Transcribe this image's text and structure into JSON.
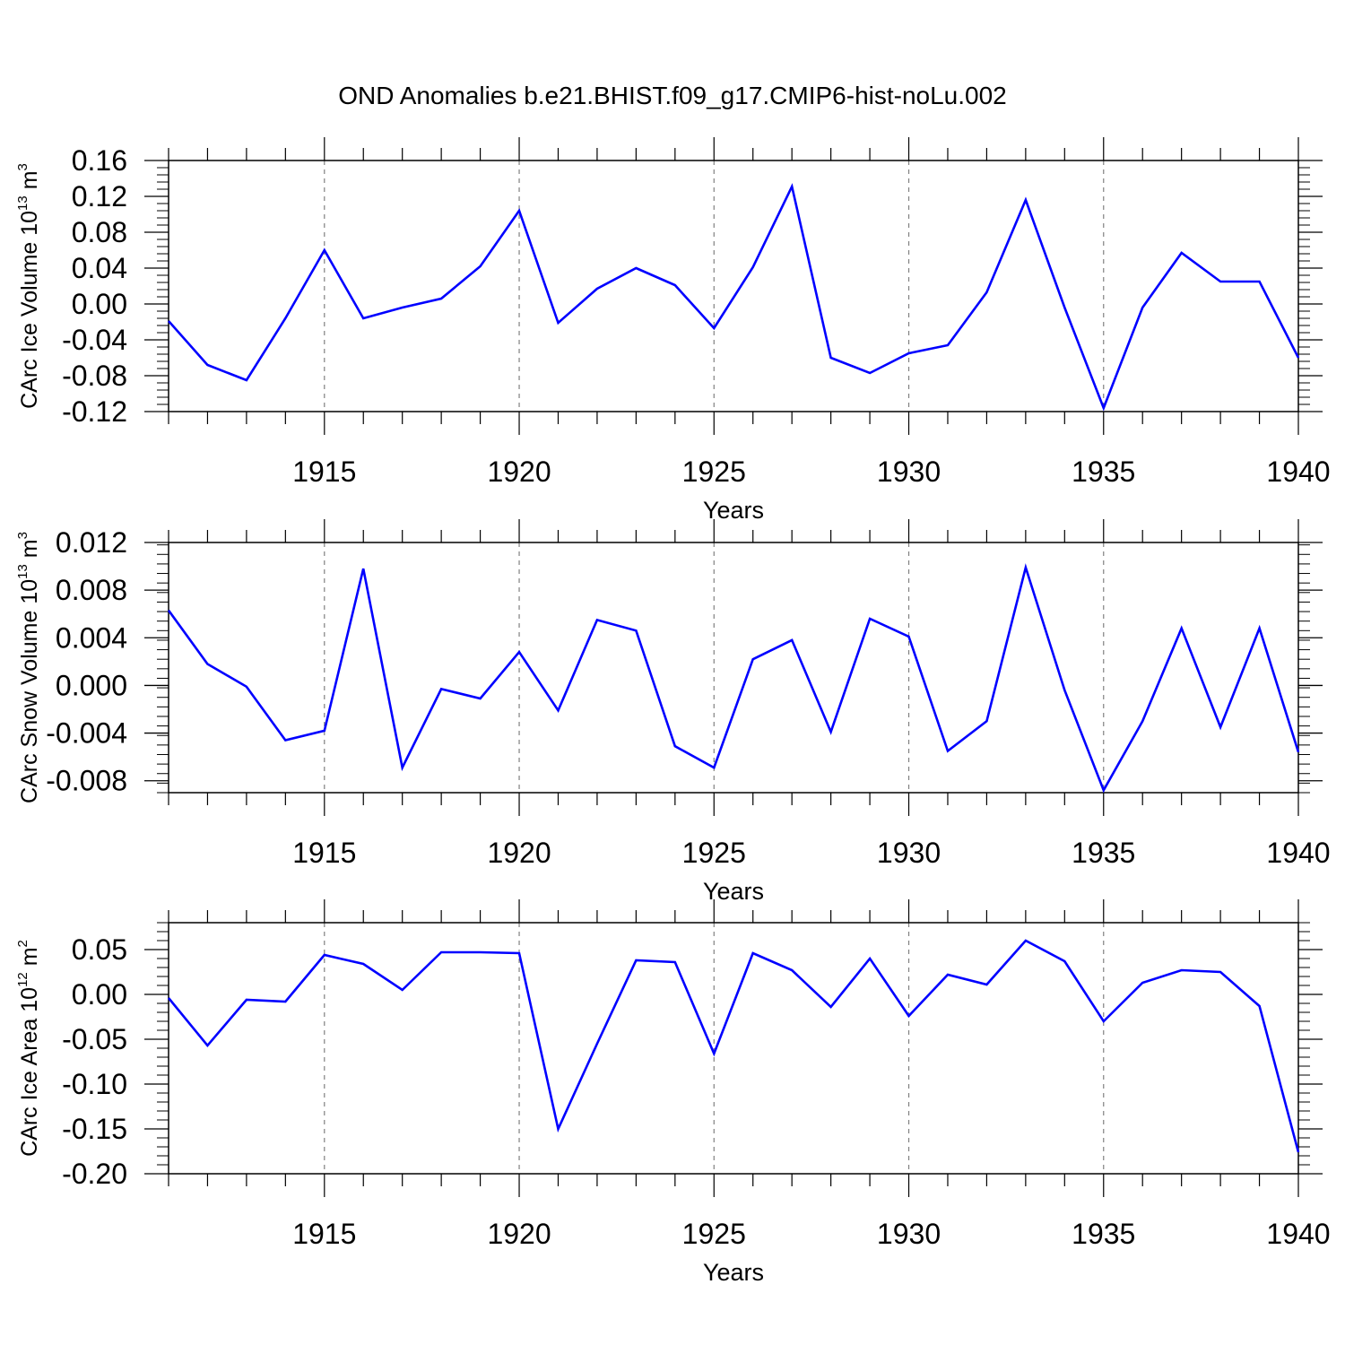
{
  "title": "OND Anomalies b.e21.BHIST.f09_g17.CMIP6-hist-noLu.002",
  "colors": {
    "line": "#0000ff",
    "axis": "#000000",
    "grid": "#808080",
    "background": "#ffffff"
  },
  "chart_data": [
    {
      "type": "line",
      "title": "OND Anomalies b.e21.BHIST.f09_g17.CMIP6-hist-noLu.002",
      "xlabel": "Years",
      "ylabel": {
        "text": "CArc Ice Volume 10",
        "exp": "13",
        "unit": " m",
        "unit_exp": "3"
      },
      "xlim": [
        1911,
        1940
      ],
      "ylim": [
        -0.12,
        0.16
      ],
      "x_ticks": [
        "1915",
        "1920",
        "1925",
        "1930",
        "1935",
        "1940"
      ],
      "y_ticks": [
        "0.16",
        "0.12",
        "0.08",
        "0.04",
        "0.00",
        "-0.04",
        "-0.08",
        "-0.12"
      ],
      "y_major_step": 0.04,
      "y_minor_step": 0.008,
      "grid": "vertical dashed at 5-year ticks",
      "x": [
        1911,
        1912,
        1913,
        1914,
        1915,
        1916,
        1917,
        1918,
        1919,
        1920,
        1921,
        1922,
        1923,
        1924,
        1925,
        1926,
        1927,
        1928,
        1929,
        1930,
        1931,
        1932,
        1933,
        1934,
        1935,
        1936,
        1937,
        1938,
        1939,
        1940
      ],
      "values": [
        -0.019,
        -0.068,
        -0.085,
        -0.016,
        0.06,
        -0.016,
        -0.004,
        0.006,
        0.042,
        0.104,
        -0.021,
        0.017,
        0.04,
        0.021,
        -0.027,
        0.041,
        0.131,
        -0.06,
        -0.077,
        -0.055,
        -0.046,
        0.013,
        0.116,
        -0.004,
        -0.116,
        -0.004,
        0.057,
        0.025,
        0.025,
        -0.06
      ]
    },
    {
      "type": "line",
      "xlabel": "Years",
      "ylabel": {
        "text": "CArc Snow Volume 10",
        "exp": "13",
        "unit": " m",
        "unit_exp": "3"
      },
      "xlim": [
        1911,
        1940
      ],
      "ylim": [
        -0.009,
        0.012
      ],
      "x_ticks": [
        "1915",
        "1920",
        "1925",
        "1930",
        "1935",
        "1940"
      ],
      "y_ticks": [
        "0.012",
        "0.008",
        "0.004",
        "0.000",
        "-0.004",
        "-0.008"
      ],
      "y_major_step": 0.004,
      "y_minor_step": 0.0008,
      "grid": "vertical dashed at 5-year ticks",
      "x": [
        1911,
        1912,
        1913,
        1914,
        1915,
        1916,
        1917,
        1918,
        1919,
        1920,
        1921,
        1922,
        1923,
        1924,
        1925,
        1926,
        1927,
        1928,
        1929,
        1930,
        1931,
        1932,
        1933,
        1934,
        1935,
        1936,
        1937,
        1938,
        1939,
        1940
      ],
      "values": [
        0.0063,
        0.0018,
        -0.0001,
        -0.0046,
        -0.0038,
        0.0098,
        -0.0069,
        -0.0003,
        -0.0011,
        0.0028,
        -0.0021,
        0.0055,
        0.0046,
        -0.0051,
        -0.0069,
        0.0022,
        0.0038,
        -0.0039,
        0.0056,
        0.0041,
        -0.0055,
        -0.003,
        0.0099,
        -0.0004,
        -0.0088,
        -0.003,
        0.0048,
        -0.0035,
        0.0048,
        -0.0056
      ]
    },
    {
      "type": "line",
      "xlabel": "Years",
      "ylabel": {
        "text": "CArc Ice Area 10",
        "exp": "12",
        "unit": " m",
        "unit_exp": "2"
      },
      "xlim": [
        1911,
        1940
      ],
      "ylim": [
        -0.2,
        0.08
      ],
      "x_ticks": [
        "1915",
        "1920",
        "1925",
        "1930",
        "1935",
        "1940"
      ],
      "y_ticks": [
        "0.05",
        "0.00",
        "-0.05",
        "-0.10",
        "-0.15",
        "-0.20"
      ],
      "y_major_step": 0.05,
      "y_minor_step": 0.01,
      "grid": "vertical dashed at 5-year ticks",
      "x": [
        1911,
        1912,
        1913,
        1914,
        1915,
        1916,
        1917,
        1918,
        1919,
        1920,
        1921,
        1922,
        1923,
        1924,
        1925,
        1926,
        1927,
        1928,
        1929,
        1930,
        1931,
        1932,
        1933,
        1934,
        1935,
        1936,
        1937,
        1938,
        1939,
        1940
      ],
      "values": [
        -0.004,
        -0.057,
        -0.006,
        -0.008,
        0.044,
        0.034,
        0.005,
        0.047,
        0.047,
        0.046,
        -0.15,
        -0.055,
        0.038,
        0.036,
        -0.066,
        0.046,
        0.027,
        -0.014,
        0.04,
        -0.024,
        0.022,
        0.011,
        0.06,
        0.037,
        -0.03,
        0.013,
        0.027,
        0.025,
        -0.013,
        -0.176
      ]
    }
  ]
}
